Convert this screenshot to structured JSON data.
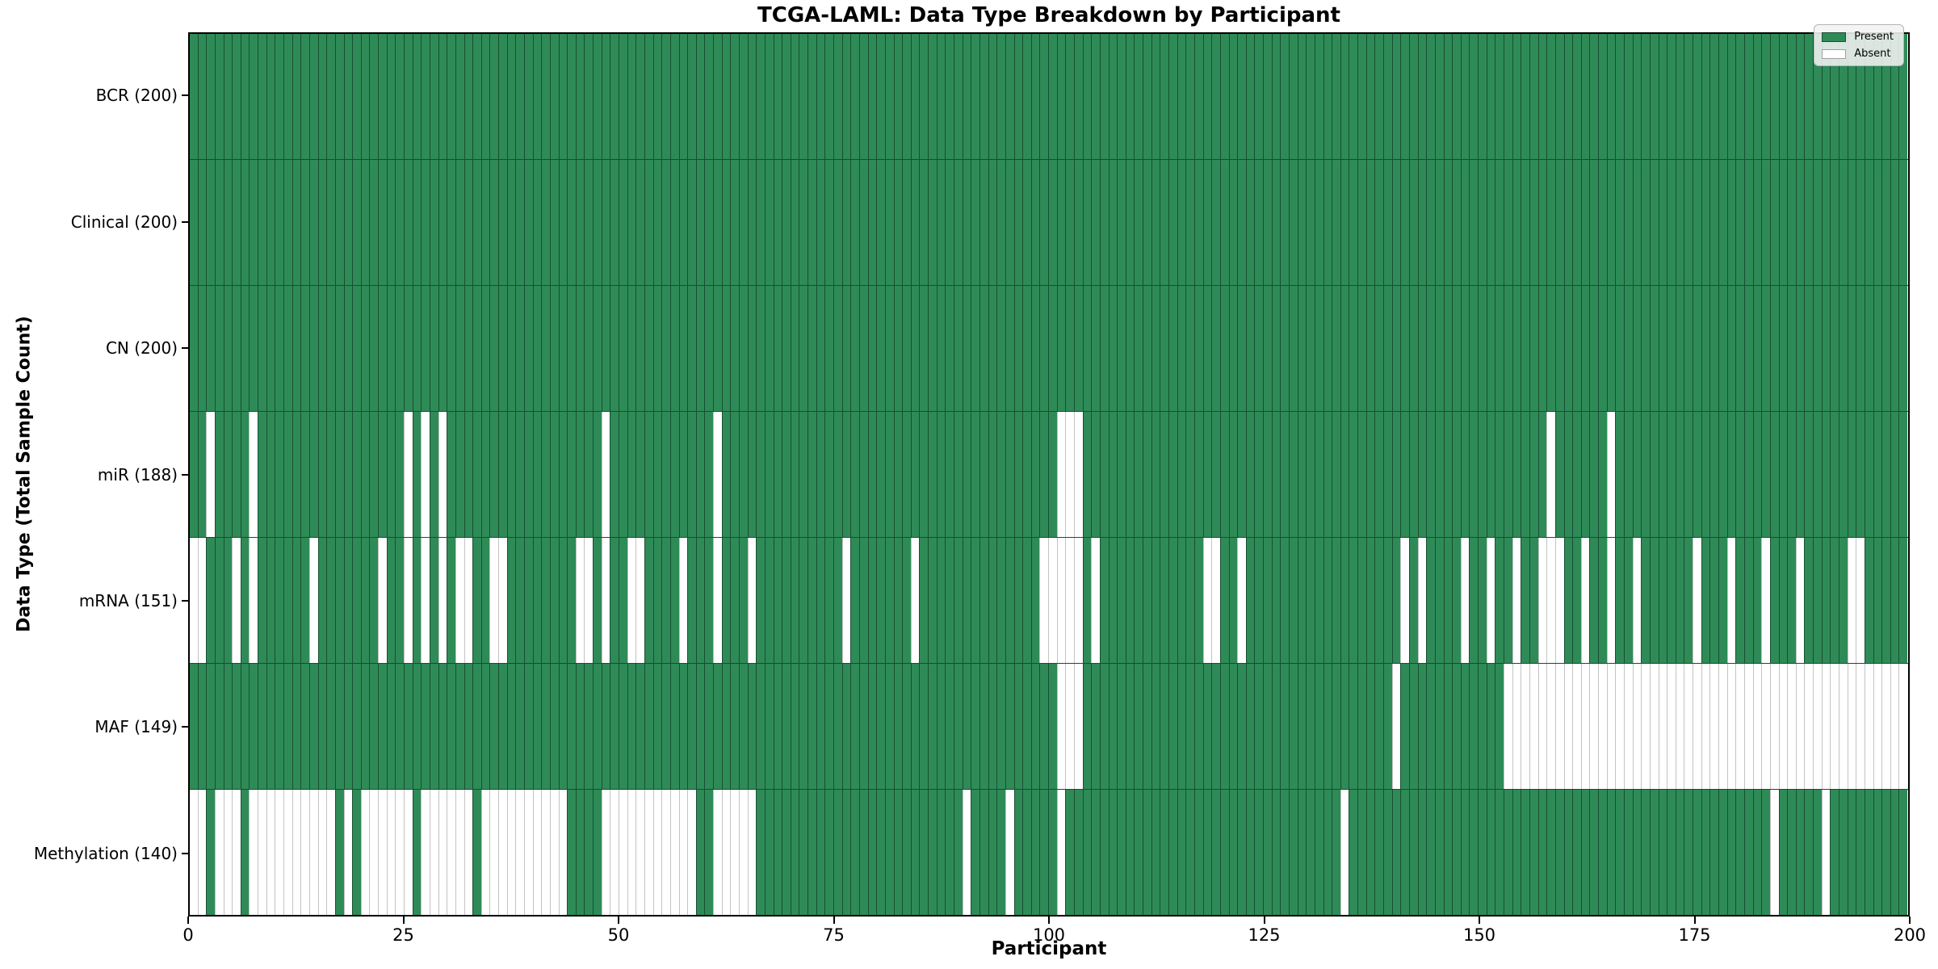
{
  "title": "TCGA-LAML: Data Type Breakdown by Participant",
  "xlabel": "Participant",
  "ylabel": "Data Type (Total Sample Count)",
  "n_participants": 200,
  "x_ticks": [
    0,
    25,
    50,
    75,
    100,
    125,
    150,
    175,
    200
  ],
  "legend": {
    "present_label": "Present",
    "absent_label": "Absent"
  },
  "colors": {
    "present": "#2e8b57",
    "absent": "#ffffff",
    "present_edge": "#1b4d32",
    "absent_edge": "#c3c3c3",
    "frame": "#000000"
  },
  "chart_data": {
    "type": "heatmap",
    "title": "TCGA-LAML: Data Type Breakdown by Participant",
    "xlabel": "Participant",
    "ylabel": "Data Type (Total Sample Count)",
    "x_range": [
      0,
      200
    ],
    "grid": false,
    "legend_position": "upper right",
    "legend_entries": [
      "Present",
      "Absent"
    ],
    "value_encoding": {
      "present": 1,
      "absent": 0
    },
    "rows": [
      {
        "name": "BCR",
        "label": "BCR (200)",
        "present_count": 200,
        "absent_participants": []
      },
      {
        "name": "Clinical",
        "label": "Clinical (200)",
        "present_count": 200,
        "absent_participants": []
      },
      {
        "name": "CN",
        "label": "CN (200)",
        "present_count": 200,
        "absent_participants": []
      },
      {
        "name": "miR",
        "label": "miR (188)",
        "present_count": 188,
        "absent_participants": [
          2,
          7,
          25,
          27,
          29,
          48,
          61,
          101,
          102,
          103,
          158,
          165
        ]
      },
      {
        "name": "mRNA",
        "label": "mRNA (151)",
        "present_count": 151,
        "absent_participants": [
          0,
          1,
          5,
          7,
          14,
          22,
          25,
          27,
          29,
          31,
          32,
          35,
          36,
          45,
          46,
          48,
          51,
          52,
          57,
          61,
          65,
          76,
          84,
          99,
          100,
          101,
          102,
          103,
          105,
          118,
          119,
          122,
          141,
          143,
          148,
          151,
          154,
          157,
          158,
          159,
          162,
          165,
          168,
          175,
          179,
          183,
          187,
          193,
          194
        ]
      },
      {
        "name": "MAF",
        "label": "MAF (149)",
        "present_count": 149,
        "absent_participants": [
          101,
          102,
          103,
          140,
          153,
          154,
          155,
          156,
          157,
          158,
          159,
          160,
          161,
          162,
          163,
          164,
          165,
          166,
          167,
          168,
          169,
          170,
          171,
          172,
          173,
          174,
          175,
          176,
          177,
          178,
          179,
          180,
          181,
          182,
          183,
          184,
          185,
          186,
          187,
          188,
          189,
          190,
          191,
          192,
          193,
          194,
          195,
          196,
          197,
          198,
          199
        ]
      },
      {
        "name": "Methylation",
        "label": "Methylation (140)",
        "present_count": 140,
        "absent_participants": [
          0,
          1,
          3,
          4,
          5,
          7,
          8,
          9,
          10,
          11,
          12,
          13,
          14,
          15,
          16,
          18,
          20,
          21,
          22,
          23,
          24,
          25,
          27,
          28,
          29,
          30,
          31,
          32,
          34,
          35,
          36,
          37,
          38,
          39,
          40,
          41,
          42,
          43,
          48,
          49,
          50,
          51,
          52,
          53,
          54,
          55,
          56,
          57,
          58,
          61,
          62,
          63,
          64,
          65,
          90,
          95,
          101,
          134,
          184,
          190
        ]
      }
    ]
  }
}
